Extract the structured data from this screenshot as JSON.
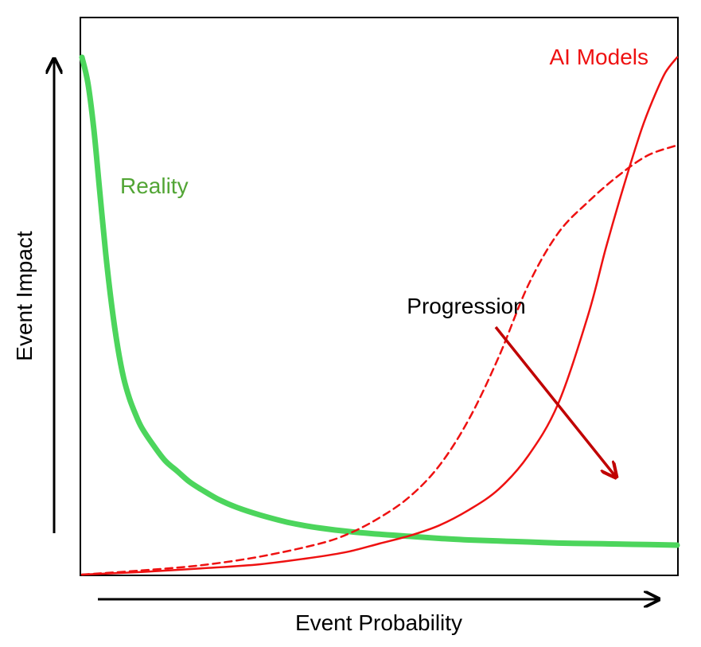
{
  "chart_data": {
    "type": "line",
    "xlabel": "Event Probability",
    "ylabel": "Event Impact",
    "xlim": [
      0,
      1
    ],
    "ylim": [
      0,
      1
    ],
    "grid": false,
    "annotation": "Progression",
    "series": [
      {
        "name": "Reality",
        "style": "solid",
        "color": "#4cd55c",
        "label_color": "#52a535",
        "x": [
          0.0,
          0.01,
          0.02,
          0.03,
          0.04,
          0.05,
          0.06,
          0.07,
          0.08,
          0.09,
          0.1,
          0.12,
          0.14,
          0.16,
          0.18,
          0.2,
          0.23,
          0.26,
          0.3,
          0.35,
          0.4,
          0.45,
          0.5,
          0.55,
          0.6,
          0.65,
          0.7,
          0.75,
          0.8,
          0.85,
          0.9,
          0.95,
          1.0
        ],
        "y": [
          1.0,
          0.95,
          0.86,
          0.74,
          0.62,
          0.52,
          0.44,
          0.38,
          0.34,
          0.31,
          0.285,
          0.25,
          0.22,
          0.2,
          0.18,
          0.165,
          0.145,
          0.13,
          0.115,
          0.1,
          0.09,
          0.083,
          0.078,
          0.074,
          0.07,
          0.067,
          0.065,
          0.063,
          0.061,
          0.06,
          0.059,
          0.058,
          0.057
        ]
      },
      {
        "name": "AI Models",
        "style": "solid",
        "color": "#ee1111",
        "label_color": "#ee1111",
        "x": [
          0.0,
          0.1,
          0.2,
          0.3,
          0.4,
          0.45,
          0.5,
          0.55,
          0.6,
          0.65,
          0.7,
          0.75,
          0.8,
          0.85,
          0.88,
          0.91,
          0.94,
          0.96,
          0.98,
          1.0
        ],
        "y": [
          0.0,
          0.005,
          0.012,
          0.02,
          0.035,
          0.045,
          0.06,
          0.075,
          0.095,
          0.125,
          0.165,
          0.23,
          0.33,
          0.5,
          0.63,
          0.75,
          0.86,
          0.92,
          0.97,
          1.0
        ]
      },
      {
        "name": "",
        "style": "dashed",
        "color": "#ee1111",
        "x": [
          0.0,
          0.1,
          0.2,
          0.3,
          0.4,
          0.45,
          0.5,
          0.55,
          0.6,
          0.65,
          0.7,
          0.75,
          0.8,
          0.85,
          0.9,
          0.95,
          1.0
        ],
        "y": [
          0.0,
          0.008,
          0.018,
          0.035,
          0.06,
          0.08,
          0.11,
          0.15,
          0.21,
          0.3,
          0.42,
          0.56,
          0.66,
          0.72,
          0.77,
          0.81,
          0.83
        ]
      }
    ]
  }
}
